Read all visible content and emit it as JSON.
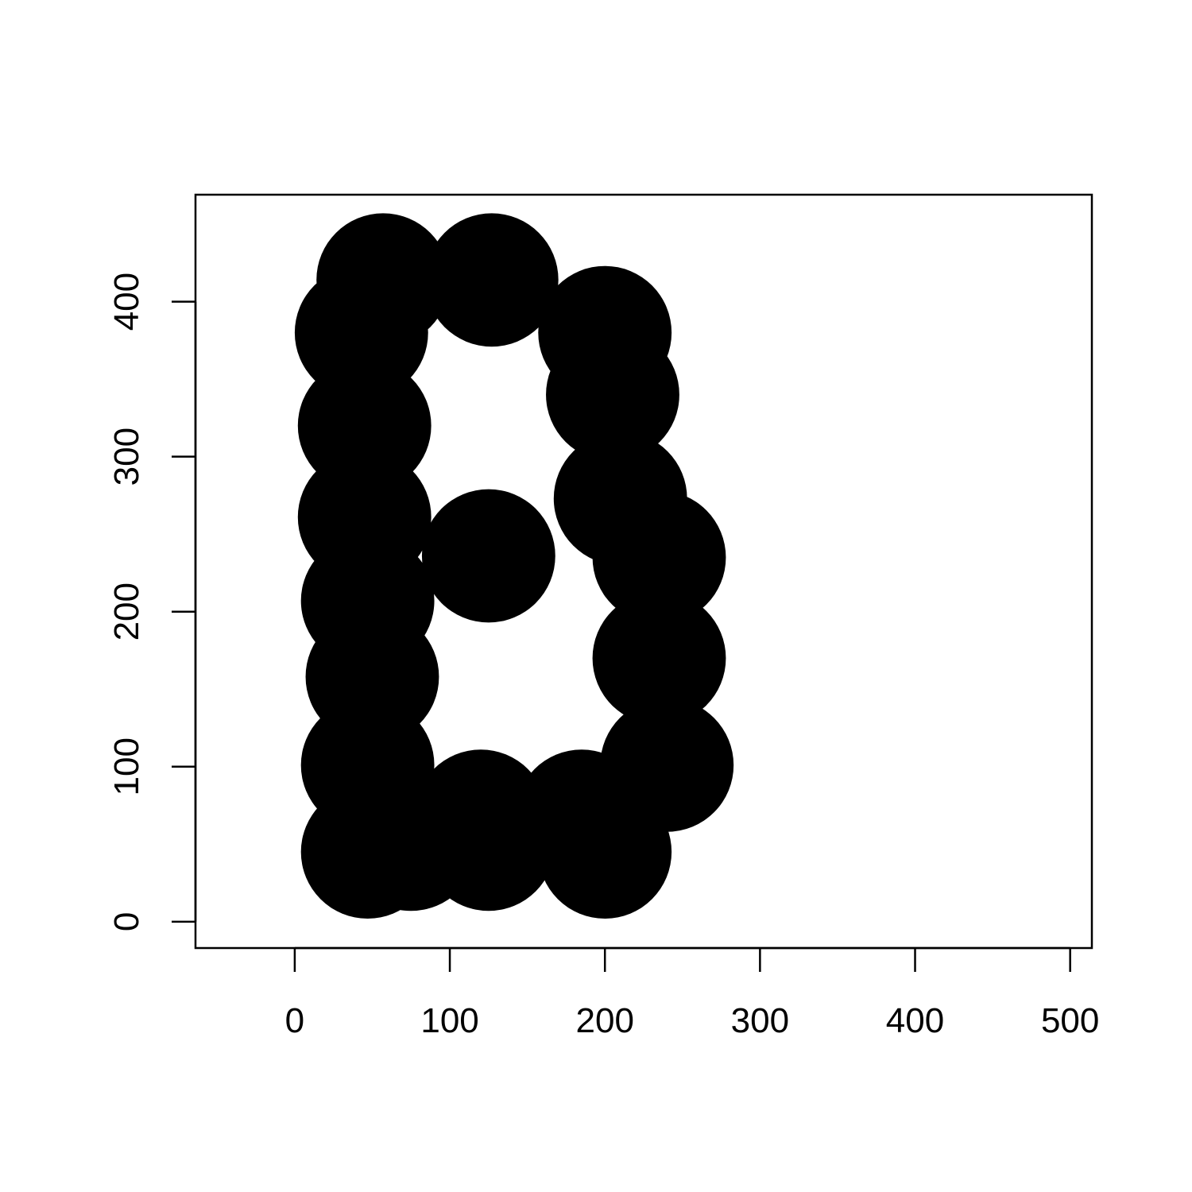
{
  "chart_data": {
    "type": "scatter",
    "title": "",
    "xlabel": "",
    "ylabel": "",
    "xlim": [
      -64,
      514
    ],
    "ylim": [
      -17,
      469
    ],
    "xticks": [
      0,
      100,
      200,
      300,
      400,
      500
    ],
    "yticks": [
      0,
      100,
      200,
      300,
      400
    ],
    "grid": false,
    "marker": "filled-circle",
    "marker_color": "#000000",
    "marker_radius": 43,
    "series": [
      {
        "points": [
          {
            "x": 57,
            "y": 414
          },
          {
            "x": 127,
            "y": 414
          },
          {
            "x": 43,
            "y": 380
          },
          {
            "x": 200,
            "y": 380
          },
          {
            "x": 45,
            "y": 320
          },
          {
            "x": 205,
            "y": 340
          },
          {
            "x": 45,
            "y": 261
          },
          {
            "x": 210,
            "y": 273
          },
          {
            "x": 125,
            "y": 236
          },
          {
            "x": 235,
            "y": 235
          },
          {
            "x": 47,
            "y": 207
          },
          {
            "x": 235,
            "y": 170
          },
          {
            "x": 50,
            "y": 158
          },
          {
            "x": 240,
            "y": 101
          },
          {
            "x": 47,
            "y": 101
          },
          {
            "x": 120,
            "y": 68
          },
          {
            "x": 185,
            "y": 68
          },
          {
            "x": 47,
            "y": 45
          },
          {
            "x": 125,
            "y": 50
          },
          {
            "x": 200,
            "y": 45
          },
          {
            "x": 75,
            "y": 50
          }
        ]
      }
    ]
  }
}
